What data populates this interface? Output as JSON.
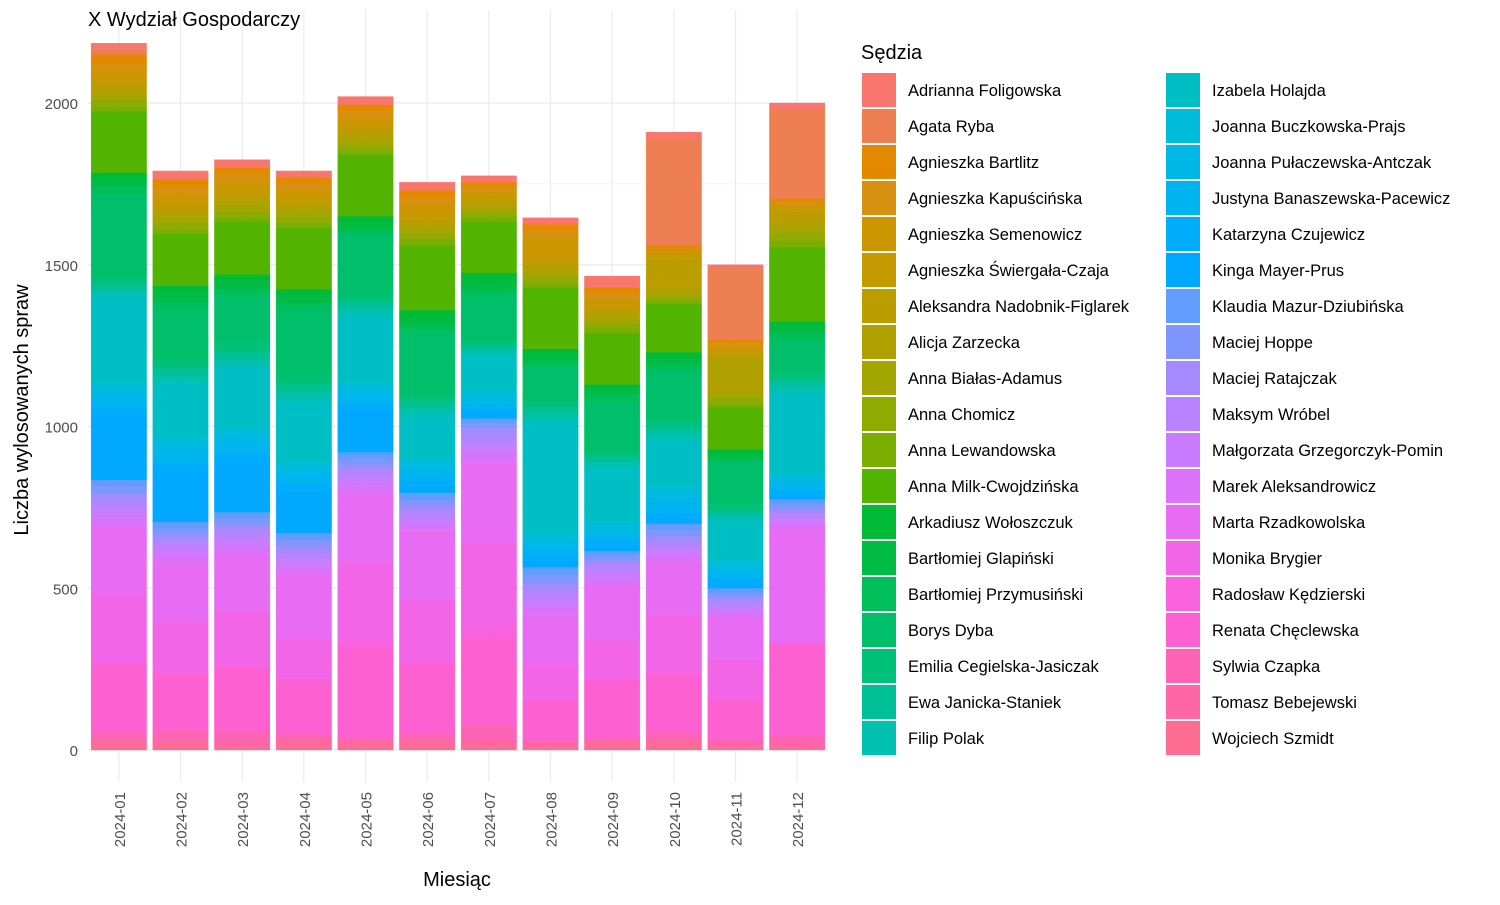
{
  "chart_data": {
    "type": "bar",
    "stacked": true,
    "title": "X Wydział Gospodarczy",
    "xlabel": "Miesiąc",
    "ylabel": "Liczba wylosowanych spraw",
    "ylim": [
      0,
      2200
    ],
    "yticks": [
      0,
      500,
      1000,
      1500,
      2000
    ],
    "grid": true,
    "legend_title": "Sędzia",
    "legend_position": "right",
    "categories": [
      "2024-01",
      "2024-02",
      "2024-03",
      "2024-04",
      "2024-05",
      "2024-06",
      "2024-07",
      "2024-08",
      "2024-09",
      "2024-10",
      "2024-11",
      "2024-12"
    ],
    "series": [
      {
        "name": "Adrianna Foligowska",
        "color": "#F8766D",
        "values": [
          20,
          25,
          25,
          20,
          25,
          25,
          20,
          20,
          35,
          20,
          10,
          20
        ]
      },
      {
        "name": "Agata Ryba",
        "color": "#EE7F53",
        "values": [
          15,
          0,
          0,
          0,
          0,
          0,
          0,
          0,
          0,
          330,
          220,
          275
        ]
      },
      {
        "name": "Agnieszka Bartlitz",
        "color": "#E38900",
        "values": [
          30,
          25,
          20,
          20,
          20,
          25,
          15,
          20,
          20,
          10,
          10,
          10
        ]
      },
      {
        "name": "Agnieszka Kapuścińska",
        "color": "#D7900F",
        "values": [
          15,
          20,
          20,
          20,
          20,
          20,
          15,
          20,
          15,
          10,
          15,
          10
        ]
      },
      {
        "name": "Agnieszka Semenowicz",
        "color": "#CB9600",
        "values": [
          30,
          25,
          25,
          20,
          25,
          25,
          10,
          60,
          20,
          10,
          10,
          10
        ]
      },
      {
        "name": "Agnieszka Świergała-Czaja",
        "color": "#C49A00",
        "values": [
          15,
          15,
          20,
          15,
          15,
          20,
          15,
          20,
          15,
          10,
          10,
          10
        ]
      },
      {
        "name": "Aleksandra Nadobnik-Figlarek",
        "color": "#BB9D00",
        "values": [
          20,
          15,
          15,
          15,
          15,
          15,
          15,
          15,
          10,
          90,
          10,
          30
        ]
      },
      {
        "name": "Alicja Zarzecka",
        "color": "#B0A100",
        "values": [
          15,
          20,
          15,
          15,
          15,
          15,
          10,
          15,
          15,
          20,
          110,
          20
        ]
      },
      {
        "name": "Anna Białas-Adamus",
        "color": "#A3A500",
        "values": [
          15,
          15,
          20,
          15,
          15,
          15,
          10,
          15,
          15,
          10,
          15,
          20
        ]
      },
      {
        "name": "Anna Chomicz",
        "color": "#8FAA00",
        "values": [
          20,
          20,
          15,
          20,
          15,
          15,
          15,
          15,
          15,
          10,
          20,
          20
        ]
      },
      {
        "name": "Anna Lewandowska",
        "color": "#7AAE00",
        "values": [
          15,
          15,
          15,
          15,
          15,
          20,
          15,
          15,
          15,
          10,
          10,
          20
        ]
      },
      {
        "name": "Anna Milk-Cwojdzińska",
        "color": "#53B400",
        "values": [
          190,
          160,
          165,
          190,
          190,
          200,
          160,
          190,
          160,
          150,
          130,
          230
        ]
      },
      {
        "name": "Arkadiusz Wołoszczuk",
        "color": "#00BA38",
        "values": [
          20,
          20,
          20,
          20,
          20,
          25,
          30,
          20,
          10,
          20,
          15,
          20
        ]
      },
      {
        "name": "Bartłomiej Glapiński",
        "color": "#00BC45",
        "values": [
          25,
          30,
          25,
          25,
          25,
          25,
          20,
          20,
          20,
          20,
          15,
          20
        ]
      },
      {
        "name": "Bartłomiej Przymusiński",
        "color": "#00BE59",
        "values": [
          25,
          20,
          20,
          20,
          10,
          15,
          20,
          15,
          20,
          20,
          10,
          20
        ]
      },
      {
        "name": "Borys Dyba",
        "color": "#00BF6B",
        "values": [
          255,
          160,
          145,
          210,
          190,
          200,
          140,
          105,
          160,
          150,
          130,
          100
        ]
      },
      {
        "name": "Emilia Cegielska-Jasiczak",
        "color": "#00C17A",
        "values": [
          20,
          25,
          30,
          25,
          20,
          20,
          15,
          20,
          15,
          20,
          20,
          20
        ]
      },
      {
        "name": "Ewa Janicka-Staniek",
        "color": "#00C097",
        "values": [
          20,
          25,
          25,
          25,
          20,
          20,
          15,
          25,
          15,
          20,
          15,
          20
        ]
      },
      {
        "name": "Filip Polak",
        "color": "#00C0B0",
        "values": [
          15,
          20,
          20,
          20,
          20,
          20,
          15,
          20,
          15,
          20,
          15,
          20
        ]
      },
      {
        "name": "Izabela Holajda",
        "color": "#00BFC4",
        "values": [
          270,
          165,
          190,
          190,
          210,
          135,
          110,
          345,
          170,
          150,
          125,
          250
        ]
      },
      {
        "name": "Joanna Buczkowska-Prajs",
        "color": "#00BBDA",
        "values": [
          25,
          30,
          25,
          20,
          20,
          20,
          20,
          20,
          20,
          25,
          20,
          20
        ]
      },
      {
        "name": "Joanna Pułaczewska-Antczak",
        "color": "#00B8E7",
        "values": [
          20,
          25,
          25,
          20,
          20,
          20,
          15,
          25,
          20,
          20,
          15,
          15
        ]
      },
      {
        "name": "Justyna Banaszewska-Pacewicz",
        "color": "#00B4F0",
        "values": [
          30,
          30,
          25,
          25,
          25,
          20,
          20,
          20,
          15,
          25,
          20,
          15
        ]
      },
      {
        "name": "Katarzyna Czujewicz",
        "color": "#00ADFA",
        "values": [
          25,
          20,
          25,
          25,
          20,
          25,
          15,
          20,
          20,
          20,
          15,
          15
        ]
      },
      {
        "name": "Kinga Mayer-Prus",
        "color": "#00A9FF",
        "values": [
          200,
          160,
          160,
          130,
          130,
          20,
          15,
          20,
          15,
          20,
          15,
          15
        ]
      },
      {
        "name": "Klaudia Mazur-Dziubińska",
        "color": "#619CFF",
        "values": [
          20,
          20,
          20,
          20,
          20,
          20,
          15,
          25,
          15,
          20,
          15,
          15
        ]
      },
      {
        "name": "Maciej Hoppe",
        "color": "#7F96FF",
        "values": [
          25,
          20,
          20,
          20,
          20,
          20,
          15,
          25,
          15,
          20,
          15,
          15
        ]
      },
      {
        "name": "Maciej Ratajczak",
        "color": "#A58AFF",
        "values": [
          25,
          20,
          20,
          20,
          20,
          20,
          30,
          25,
          15,
          20,
          15,
          15
        ]
      },
      {
        "name": "Maksym Wróbel",
        "color": "#B983FF",
        "values": [
          25,
          20,
          25,
          20,
          20,
          20,
          30,
          25,
          20,
          20,
          15,
          15
        ]
      },
      {
        "name": "Małgorzata Grzegorczyk-Pomin",
        "color": "#CB7BFF",
        "values": [
          25,
          25,
          25,
          25,
          25,
          20,
          20,
          25,
          20,
          20,
          15,
          15
        ]
      },
      {
        "name": "Marek Aleksandrowicz",
        "color": "#DC71FA",
        "values": [
          30,
          25,
          25,
          20,
          25,
          20,
          30,
          25,
          20,
          20,
          15,
          20
        ]
      },
      {
        "name": "Marta Rzadkowolska",
        "color": "#E76BF3",
        "values": [
          200,
          180,
          170,
          200,
          210,
          210,
          240,
          150,
          170,
          160,
          130,
          350
        ]
      },
      {
        "name": "Monika Brygier",
        "color": "#F265E7",
        "values": [
          220,
          155,
          170,
          125,
          245,
          195,
          265,
          110,
          125,
          185,
          120,
          0
        ]
      },
      {
        "name": "Radosław Kędzierski",
        "color": "#F962DD",
        "values": [
          0,
          10,
          5,
          10,
          15,
          0,
          30,
          0,
          0,
          0,
          5,
          0
        ]
      },
      {
        "name": "Renata Chęclewska",
        "color": "#FD61D1",
        "values": [
          210,
          165,
          195,
          160,
          280,
          220,
          275,
          125,
          175,
          180,
          120,
          285
        ]
      },
      {
        "name": "Sylwia Czapka",
        "color": "#FF63B6",
        "values": [
          20,
          30,
          30,
          15,
          10,
          15,
          40,
          5,
          10,
          20,
          15,
          20
        ]
      },
      {
        "name": "Tomasz Bebejewski",
        "color": "#FF67A4",
        "values": [
          15,
          15,
          20,
          15,
          10,
          15,
          20,
          15,
          10,
          15,
          10,
          15
        ]
      },
      {
        "name": "Wojciech Szmidt",
        "color": "#FF6C91",
        "values": [
          20,
          20,
          10,
          20,
          20,
          20,
          15,
          10,
          20,
          20,
          10,
          10
        ]
      }
    ]
  }
}
